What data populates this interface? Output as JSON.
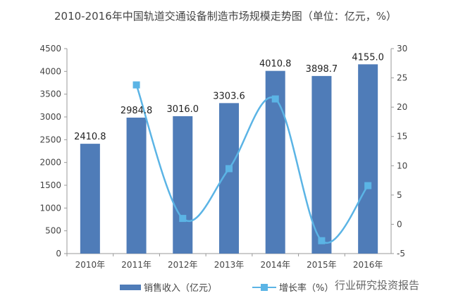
{
  "chart_data": {
    "type": "bar+line",
    "title": "2010-2016年中国轨道交通设备制造市场规模走势图（单位：亿元，%）",
    "categories": [
      "2010年",
      "2011年",
      "2012年",
      "2013年",
      "2014年",
      "2015年",
      "2016年"
    ],
    "series": [
      {
        "name": "销售收入（亿元）",
        "type": "bar",
        "axis": "left",
        "color": "#4f7cb8",
        "values": [
          2410.8,
          2984.8,
          3016.0,
          3303.6,
          4010.8,
          3898.7,
          4155.0
        ],
        "labels": [
          "2410.8",
          "2984.8",
          "3016.0",
          "3303.6",
          "4010.8",
          "3898.7",
          "4155.0"
        ]
      },
      {
        "name": "增长率（%）",
        "type": "line",
        "axis": "right",
        "color": "#5bb4e5",
        "values": [
          null,
          23.8,
          1.0,
          9.5,
          21.4,
          -2.8,
          6.6
        ]
      }
    ],
    "ylim_left": [
      0,
      4500
    ],
    "yticks_left": [
      0,
      500,
      1000,
      1500,
      2000,
      2500,
      3000,
      3500,
      4000,
      4500
    ],
    "ylim_right": [
      -5,
      30
    ],
    "yticks_right": [
      -5,
      0,
      5,
      10,
      15,
      20,
      25,
      30
    ],
    "grid": false,
    "legend": "bottom"
  },
  "watermark": "行业研究投资报告"
}
